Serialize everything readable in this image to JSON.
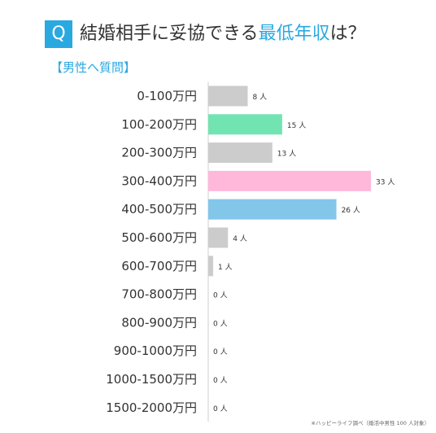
{
  "header": {
    "badge": "Q",
    "title_part1": "結婚相手に妥協できる",
    "title_highlight": "最低年収",
    "title_part2": "は？",
    "subtitle": "【男性へ質問】"
  },
  "footnote": "※ハッピーライフ調べ（婚活中男性 100 人対象）",
  "chart_data": {
    "type": "bar",
    "orientation": "horizontal",
    "title": "結婚相手に妥協できる最低年収は？",
    "subtitle": "【男性へ質問】",
    "categories": [
      "0-100万円",
      "100-200万円",
      "200-300万円",
      "300-400万円",
      "400-500万円",
      "500-600万円",
      "600-700万円",
      "700-800万円",
      "800-900万円",
      "900-1000万円",
      "1000-1500万円",
      "1500-2000万円"
    ],
    "values": [
      8,
      15,
      13,
      33,
      26,
      4,
      1,
      0,
      0,
      0,
      0,
      0
    ],
    "value_labels": [
      "8 人",
      "15 人",
      "13 人",
      "33 人",
      "26 人",
      "4 人",
      "1 人",
      "0 人",
      "0 人",
      "0 人",
      "0 人",
      "0 人"
    ],
    "colors": [
      "#cccccc",
      "#72e4b2",
      "#cccccc",
      "#ffb8da",
      "#82c7ea",
      "#cccccc",
      "#cccccc",
      "#cccccc",
      "#cccccc",
      "#cccccc",
      "#cccccc",
      "#cccccc"
    ],
    "xlim": [
      0,
      33
    ],
    "grid": false
  }
}
